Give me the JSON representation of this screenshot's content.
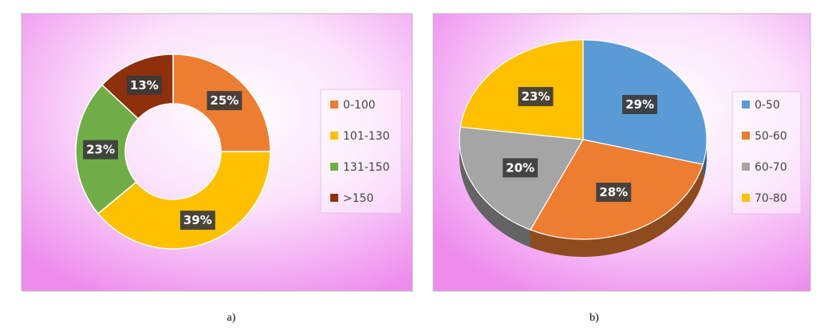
{
  "chart_data": [
    {
      "type": "donut",
      "caption": "a)",
      "categories": [
        "0-100",
        "101-130",
        "131-150",
        ">150"
      ],
      "values": [
        25,
        39,
        23,
        13
      ],
      "value_labels": [
        "25%",
        "39%",
        "23%",
        "13%"
      ],
      "colors": [
        "#ed7d31",
        "#ffc000",
        "#70ad47",
        "#8e300c"
      ],
      "legend": "right"
    },
    {
      "type": "pie",
      "3d": true,
      "caption": "b)",
      "categories": [
        "0-50",
        "50-60",
        "60-70",
        "70-80"
      ],
      "values": [
        29,
        28,
        20,
        23
      ],
      "value_labels": [
        "29%",
        "28%",
        "20%",
        "23%"
      ],
      "colors": [
        "#5b9bd5",
        "#ed7d31",
        "#a5a5a5",
        "#ffc000"
      ],
      "legend": "right"
    }
  ]
}
